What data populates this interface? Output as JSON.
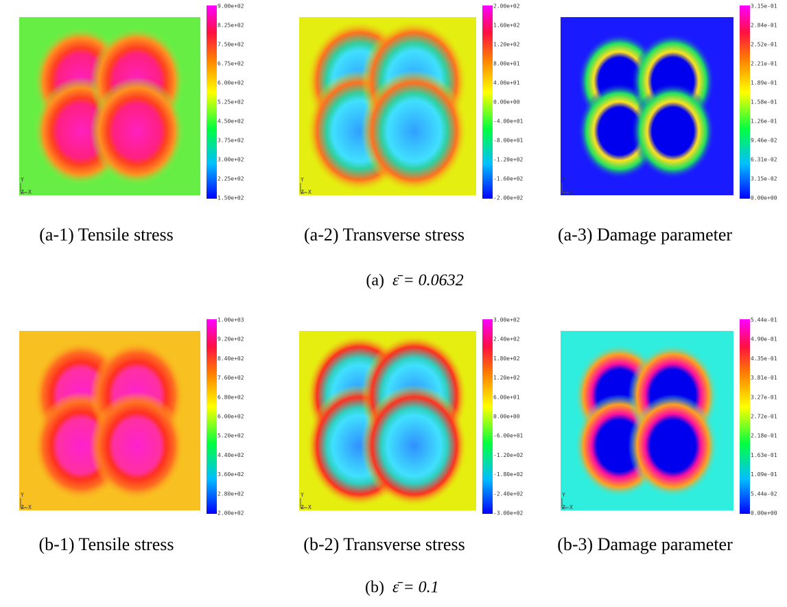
{
  "figure": {
    "rows": [
      {
        "label": "(a)",
        "equation": "ε̄ = 0.0632",
        "panels": [
          {
            "caption": "(a-1) Tensile stress",
            "triad": {
              "y": "Y",
              "z": "Z",
              "x": "X"
            },
            "colorbar": [
              "9.00e+02",
              "8.25e+02",
              "7.50e+02",
              "6.75e+02",
              "6.00e+02",
              "5.25e+02",
              "4.50e+02",
              "3.75e+02",
              "3.00e+02",
              "2.25e+02",
              "1.50e+02"
            ]
          },
          {
            "caption": "(a-2) Transverse stress",
            "triad": {
              "y": "Y",
              "z": "Z",
              "x": "X"
            },
            "colorbar": [
              "2.00e+02",
              "1.60e+02",
              "1.20e+02",
              "8.00e+01",
              "4.00e+01",
              "0.00e+00",
              "-4.00e+01",
              "-8.00e+01",
              "-1.20e+02",
              "-1.60e+02",
              "-2.00e+02"
            ]
          },
          {
            "caption": "(a-3) Damage parameter",
            "triad": {
              "y": "Y",
              "z": "Z",
              "x": "X"
            },
            "colorbar": [
              "3.15e-01",
              "2.84e-01",
              "2.52e-01",
              "2.21e-01",
              "1.89e-01",
              "1.58e-01",
              "1.26e-01",
              "9.46e-02",
              "6.31e-02",
              "3.15e-02",
              "0.00e+00"
            ]
          }
        ]
      },
      {
        "label": "(b)",
        "equation": "ε̄ = 0.1",
        "panels": [
          {
            "caption": "(b-1) Tensile stress",
            "triad": {
              "y": "Y",
              "z": "Z",
              "x": "X"
            },
            "colorbar": [
              "1.00e+03",
              "9.20e+02",
              "8.40e+02",
              "7.60e+02",
              "6.80e+02",
              "6.00e+02",
              "5.20e+02",
              "4.40e+02",
              "3.60e+02",
              "2.80e+02",
              "2.00e+02"
            ]
          },
          {
            "caption": "(b-2) Transverse stress",
            "triad": {
              "y": "Y",
              "z": "Z",
              "x": "X"
            },
            "colorbar": [
              "3.00e+02",
              "2.40e+02",
              "1.80e+02",
              "1.20e+02",
              "6.00e+01",
              "0.00e+00",
              "-6.00e+01",
              "-1.20e+02",
              "-1.80e+02",
              "-2.40e+02",
              "-3.00e+02"
            ]
          },
          {
            "caption": "(b-3) Damage parameter",
            "triad": {
              "y": "Y",
              "z": "Z",
              "x": "X"
            },
            "colorbar": [
              "5.44e-01",
              "4.90e-01",
              "4.35e-01",
              "3.81e-01",
              "3.27e-01",
              "2.72e-01",
              "2.18e-01",
              "1.63e-01",
              "1.09e-01",
              "5.44e-02",
              "0.00e+00"
            ]
          }
        ]
      }
    ]
  }
}
